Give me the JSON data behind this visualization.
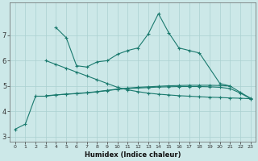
{
  "xlabel": "Humidex (Indice chaleur)",
  "background_color": "#cce8e8",
  "grid_color": "#aad0d0",
  "line_color": "#1a7a6e",
  "ylim": [
    2.8,
    8.3
  ],
  "xlim": [
    -0.5,
    23.5
  ],
  "s1_x": [
    4,
    5,
    6,
    7,
    8,
    9,
    10,
    11,
    12,
    13,
    14,
    15,
    16,
    17,
    18,
    20,
    21
  ],
  "s1_y": [
    7.3,
    6.9,
    5.8,
    5.75,
    5.95,
    6.0,
    6.25,
    6.4,
    6.5,
    7.05,
    7.85,
    7.1,
    6.5,
    6.4,
    6.3,
    5.1,
    5.0
  ],
  "s2_x": [
    3,
    4,
    5,
    6,
    7,
    8,
    9,
    10,
    11,
    12,
    13,
    14,
    15,
    16,
    17,
    18,
    19,
    20,
    21,
    22,
    23
  ],
  "s2_y": [
    6.0,
    5.85,
    5.7,
    5.55,
    5.4,
    5.25,
    5.1,
    4.95,
    4.85,
    4.78,
    4.72,
    4.68,
    4.65,
    4.62,
    4.6,
    4.58,
    4.56,
    4.55,
    4.53,
    4.52,
    4.5
  ],
  "s3_x": [
    0,
    1,
    2,
    3,
    4,
    5,
    6,
    7,
    8,
    9,
    10,
    11,
    12,
    13,
    14,
    15,
    16,
    17,
    18,
    19,
    20,
    21,
    22,
    23
  ],
  "s3_y": [
    3.3,
    3.5,
    4.6,
    4.6,
    4.65,
    4.68,
    4.7,
    4.73,
    4.77,
    4.82,
    4.87,
    4.9,
    4.92,
    4.94,
    4.96,
    4.97,
    4.98,
    4.98,
    4.98,
    4.97,
    4.95,
    4.9,
    4.72,
    4.5
  ],
  "s4_x": [
    3,
    4,
    5,
    6,
    7,
    8,
    9,
    10,
    11,
    12,
    13,
    14,
    15,
    16,
    17,
    18,
    19,
    20,
    21,
    22,
    23
  ],
  "s4_y": [
    4.62,
    4.65,
    4.68,
    4.71,
    4.74,
    4.78,
    4.83,
    4.88,
    4.92,
    4.95,
    4.97,
    4.99,
    5.01,
    5.02,
    5.03,
    5.03,
    5.03,
    5.02,
    5.0,
    4.75,
    4.52
  ]
}
